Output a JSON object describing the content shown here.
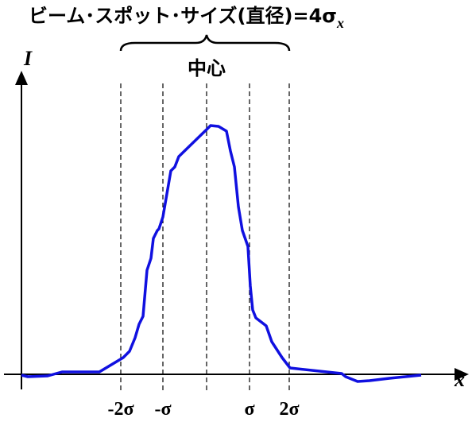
{
  "title": {
    "text": "ビーム･スポット･サイズ(直径)=4σ",
    "subscript": "x"
  },
  "center_label": "中心",
  "axes": {
    "y_label": "I",
    "x_label": "x"
  },
  "ticks": [
    "-2σ",
    "-σ",
    "σ",
    "2σ"
  ]
}
